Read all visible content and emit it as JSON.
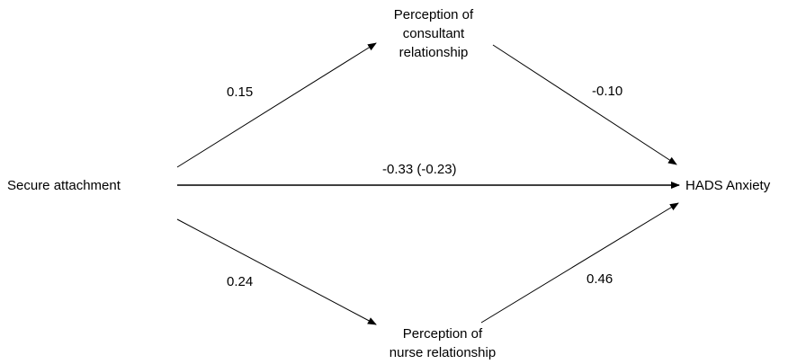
{
  "nodes": {
    "secure_attachment": {
      "label": "Secure attachment"
    },
    "consultant": {
      "lines": [
        "Perception of",
        "consultant",
        "relationship"
      ]
    },
    "nurse": {
      "lines": [
        "Perception of",
        "nurse relationship"
      ]
    },
    "hads_anxiety": {
      "label": "HADS Anxiety"
    }
  },
  "paths": {
    "attachment_to_consultant": {
      "coefficient": "0.15"
    },
    "consultant_to_anxiety": {
      "coefficient": "-0.10"
    },
    "attachment_to_anxiety": {
      "coefficient": "-0.33 (-0.23)"
    },
    "attachment_to_nurse": {
      "coefficient": "0.24"
    },
    "nurse_to_anxiety": {
      "coefficient": "0.46"
    }
  },
  "style": {
    "line_color": "#000000",
    "text_color": "#000000",
    "background": "#ffffff"
  }
}
